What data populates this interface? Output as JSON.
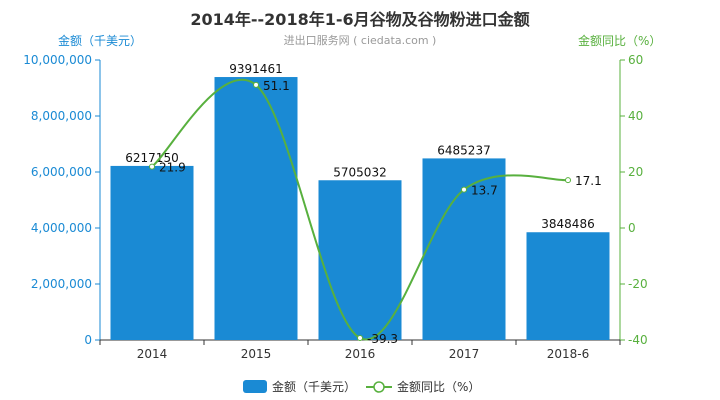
{
  "header": {
    "title": "2014年--2018年1-6月谷物及谷物粉进口金额",
    "subtitle": "进出口服务网 ( ciedata.com )",
    "left_axis_name": "金额（千美元）",
    "right_axis_name": "金额同比（%）"
  },
  "colors": {
    "bar": "#1a8ad4",
    "line": "#58b03e",
    "left_axis": "#1a8ad4",
    "right_axis": "#58b03e"
  },
  "chart_data": {
    "type": "bar",
    "categories": [
      "2014",
      "2015",
      "2016",
      "2017",
      "2018-6"
    ],
    "series": [
      {
        "name": "金额（千美元）",
        "type": "bar",
        "axis": "left",
        "values": [
          6217150,
          9391461,
          5705032,
          6485237,
          3848486
        ]
      },
      {
        "name": "金额同比（%）",
        "type": "line",
        "axis": "right",
        "smooth": true,
        "values": [
          21.9,
          51.1,
          -39.3,
          13.7,
          17.1
        ]
      }
    ],
    "left_axis": {
      "min": 0,
      "max": 10000000,
      "ticks": [
        "0",
        "2,000,000",
        "4,000,000",
        "6,000,000",
        "8,000,000",
        "10,000,000"
      ]
    },
    "right_axis": {
      "min": -40,
      "max": 60,
      "ticks": [
        "-40",
        "-20",
        "0",
        "20",
        "40",
        "60"
      ]
    },
    "legend_position": "bottom-center"
  }
}
